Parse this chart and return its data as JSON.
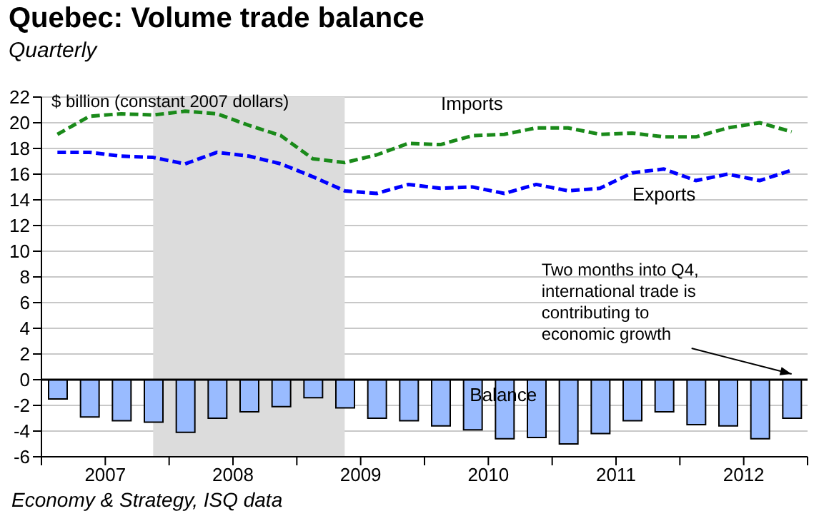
{
  "chart_data": {
    "type": "line",
    "title": "Quebec: Volume trade balance",
    "subtitle": "Quarterly",
    "ylabel": "$ billion (constant 2007 dollars)",
    "x": [
      2007.125,
      2007.375,
      2007.625,
      2007.875,
      2008.125,
      2008.375,
      2008.625,
      2008.875,
      2009.125,
      2009.375,
      2009.625,
      2009.875,
      2010.125,
      2010.375,
      2010.625,
      2010.875,
      2011.125,
      2011.375,
      2011.625,
      2011.875,
      2012.125,
      2012.375,
      2012.625,
      2012.875
    ],
    "series": [
      {
        "name": "Imports",
        "color": "#1a8a1a",
        "line_style": "dashed",
        "values": [
          19.1,
          20.5,
          20.7,
          20.6,
          20.9,
          20.7,
          19.8,
          19.0,
          17.2,
          16.9,
          17.5,
          18.4,
          18.3,
          19.0,
          19.1,
          19.6,
          19.6,
          19.1,
          19.2,
          18.9,
          18.9,
          19.6,
          20.0,
          19.3
        ]
      },
      {
        "name": "Exports",
        "color": "#0000ff",
        "line_style": "dashed",
        "values": [
          17.7,
          17.7,
          17.4,
          17.3,
          16.8,
          17.7,
          17.4,
          16.8,
          15.8,
          14.7,
          14.5,
          15.2,
          14.9,
          15.0,
          14.5,
          15.2,
          14.7,
          14.9,
          16.1,
          16.4,
          15.5,
          16.0,
          15.5,
          16.3
        ]
      },
      {
        "name": "Balance",
        "type": "bar",
        "color": "#99bbff",
        "values": [
          -1.5,
          -2.9,
          -3.2,
          -3.3,
          -4.1,
          -3.0,
          -2.5,
          -2.1,
          -1.4,
          -2.2,
          -3.0,
          -3.2,
          -3.6,
          -3.9,
          -4.6,
          -4.5,
          -5.0,
          -4.2,
          -3.2,
          -2.5,
          -3.5,
          -3.6,
          -4.6,
          -3.0
        ]
      }
    ],
    "xlim": [
      2007,
      2013
    ],
    "xticks": [
      {
        "value": 2007,
        "label": null
      },
      {
        "value": 2007.5,
        "label": "2007"
      },
      {
        "value": 2008,
        "label": null
      },
      {
        "value": 2008.5,
        "label": "2008"
      },
      {
        "value": 2009,
        "label": null
      },
      {
        "value": 2009.5,
        "label": "2009"
      },
      {
        "value": 2010,
        "label": null
      },
      {
        "value": 2010.5,
        "label": "2010"
      },
      {
        "value": 2011,
        "label": null
      },
      {
        "value": 2011.5,
        "label": "2011"
      },
      {
        "value": 2012,
        "label": null
      },
      {
        "value": 2012.5,
        "label": "2012"
      },
      {
        "value": 2013,
        "label": null
      }
    ],
    "ylim": [
      -6,
      22
    ],
    "yticks": [
      -6,
      -4,
      -2,
      0,
      2,
      4,
      6,
      8,
      10,
      12,
      14,
      16,
      18,
      20,
      22
    ],
    "grid": "y",
    "legend": false,
    "marker": "none",
    "ref_lines": [
      {
        "axis": "y",
        "value": 0,
        "color": "#000000"
      }
    ],
    "bands": [
      {
        "axis": "x",
        "from": 2007.875,
        "to": 2009.375,
        "color": "#dcdcdc"
      }
    ],
    "annotations": [
      {
        "text": "Two months into Q4, international trade is contributing to economic growth",
        "x": 2012.875,
        "y": 0
      },
      "Economy & Strategy, ISQ data"
    ]
  }
}
